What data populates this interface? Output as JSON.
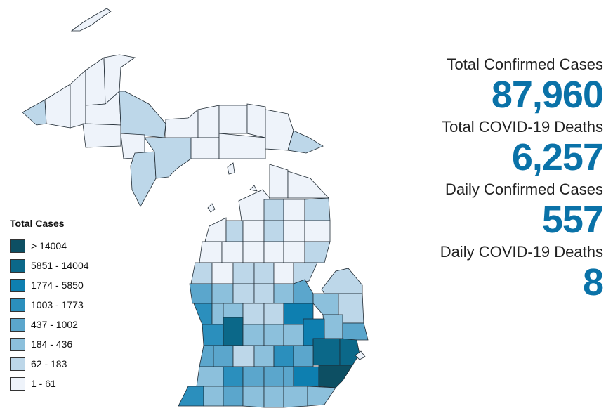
{
  "legend": {
    "title": "Total Cases",
    "items": [
      {
        "label": "> 14004",
        "color": "#0d4f63"
      },
      {
        "label": "5851 - 14004",
        "color": "#0b6889"
      },
      {
        "label": "1774 - 5850",
        "color": "#0e7fb0"
      },
      {
        "label": "1003 - 1773",
        "color": "#2b8fbd"
      },
      {
        "label": "437 - 1002",
        "color": "#5ba6cc"
      },
      {
        "label": "184 - 436",
        "color": "#8cc0dc"
      },
      {
        "label": "62 - 183",
        "color": "#bdd7e9"
      },
      {
        "label": "1 - 61",
        "color": "#eef3fa"
      }
    ]
  },
  "stats": [
    {
      "label": "Total Confirmed Cases",
      "value": "87,960"
    },
    {
      "label": "Total COVID-19 Deaths",
      "value": "6,257"
    },
    {
      "label": "Daily Confirmed Cases",
      "value": "557"
    },
    {
      "label": "Daily COVID-19 Deaths",
      "value": "8"
    }
  ],
  "colors": {
    "accent": "#0a72a8",
    "outline": "#1f2a33"
  }
}
